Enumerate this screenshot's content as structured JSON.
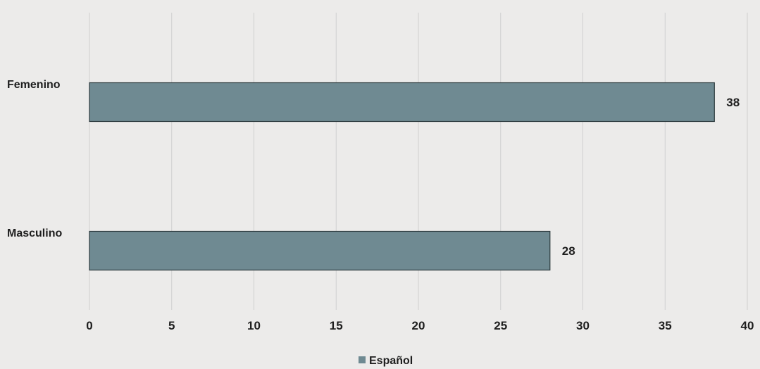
{
  "chart_data": {
    "type": "bar",
    "orientation": "horizontal",
    "categories": [
      "Femenino",
      "Masculino"
    ],
    "series": [
      {
        "name": "Español",
        "values": [
          38,
          28
        ],
        "color": "#6f8a92"
      }
    ],
    "xlim": [
      0,
      40
    ],
    "xticks": [
      0,
      5,
      10,
      15,
      20,
      25,
      30,
      35,
      40
    ],
    "grid": true,
    "legend": "bottom",
    "data_labels": [
      "38",
      "28"
    ]
  }
}
